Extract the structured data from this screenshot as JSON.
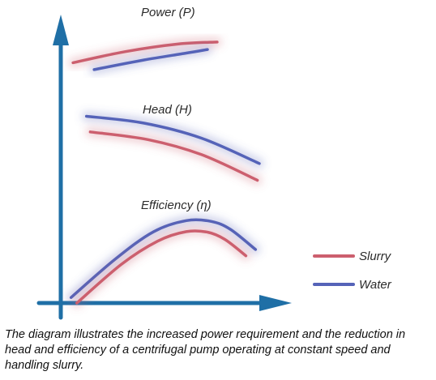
{
  "chart_data": {
    "type": "line",
    "title": "",
    "xlabel": "",
    "ylabel": "",
    "grid": false,
    "legend": {
      "placement": "right",
      "entries": [
        "Slurry",
        "Water"
      ]
    },
    "colors": {
      "Slurry": "#cc5f6e",
      "Water": "#5563b8",
      "axis": "#1f6fa6"
    },
    "curve_groups": [
      {
        "label": "Power (P)",
        "series": [
          {
            "name": "Slurry",
            "x": [
              0.03,
              0.3,
              0.58,
              0.78
            ],
            "y": [
              0.875,
              0.915,
              0.943,
              0.95
            ]
          },
          {
            "name": "Water",
            "x": [
              0.14,
              0.4,
              0.62,
              0.73
            ],
            "y": [
              0.85,
              0.885,
              0.91,
              0.923
            ]
          }
        ]
      },
      {
        "label": "Head (H)",
        "series": [
          {
            "name": "Water",
            "x": [
              0.1,
              0.4,
              0.7,
              1.0
            ],
            "y": [
              0.68,
              0.655,
              0.6,
              0.508
            ]
          },
          {
            "name": "Slurry",
            "x": [
              0.12,
              0.42,
              0.7,
              0.99
            ],
            "y": [
              0.623,
              0.595,
              0.54,
              0.447
            ]
          }
        ]
      },
      {
        "label": "Efficiency (η)",
        "series": [
          {
            "name": "Water",
            "x": [
              0.02,
              0.25,
              0.45,
              0.62,
              0.75,
              0.85,
              0.98
            ],
            "y": [
              0.02,
              0.16,
              0.26,
              0.3,
              0.297,
              0.268,
              0.195
            ]
          },
          {
            "name": "Slurry",
            "x": [
              0.05,
              0.28,
              0.47,
              0.62,
              0.73,
              0.82,
              0.93
            ],
            "y": [
              0.0,
              0.14,
              0.225,
              0.26,
              0.258,
              0.232,
              0.172
            ]
          }
        ]
      }
    ]
  },
  "caption": "The diagram illustrates the increased power requirement and the reduction in head and efficiency of a centrifugal pump operating at constant speed and handling slurry."
}
